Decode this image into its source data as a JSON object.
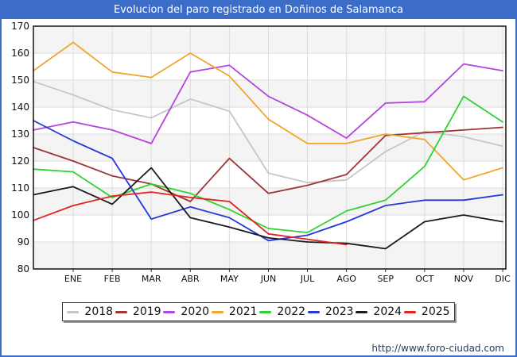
{
  "window": {
    "title": "Evolucion del paro registrado en Doñinos de Salamanca"
  },
  "footer": {
    "url": "http://www.foro-ciudad.com"
  },
  "colors": {
    "frame_blue": "#3a6cc8",
    "plot_border": "#111111",
    "gridline": "#dcdcdc",
    "band_shade": "#f4f4f4",
    "tick_text": "#111111"
  },
  "chart_data": {
    "type": "line",
    "title": "Evolucion del paro registrado en Doñinos de Salamanca",
    "xlabel": "",
    "ylabel": "",
    "categories": [
      "ENE",
      "FEB",
      "MAR",
      "ABR",
      "MAY",
      "JUN",
      "JUL",
      "AGO",
      "SEP",
      "OCT",
      "NOV",
      "DIC"
    ],
    "y_axis": {
      "min": 80,
      "max": 170,
      "step": 10
    },
    "grid": true,
    "legend_position": "bottom",
    "series_note": "start = value where the line meets the left axis edge, before the ENE tick",
    "series": [
      {
        "name": "2018",
        "color": "#c6c6c6",
        "start": 149.5,
        "values": [
          144.5,
          139,
          136,
          143,
          138.5,
          115.5,
          112,
          113,
          123.5,
          131,
          129,
          125.5
        ]
      },
      {
        "name": "2019",
        "color": "#9e3434",
        "start": 125,
        "values": [
          120,
          114.5,
          111.5,
          105,
          121,
          108,
          111,
          115,
          129.5,
          130.5,
          131.5,
          132.5
        ]
      },
      {
        "name": "2020",
        "color": "#b544e0",
        "start": 131.5,
        "values": [
          134.5,
          131.5,
          126.5,
          153,
          155.5,
          144,
          137,
          128.5,
          141.5,
          142,
          156,
          153.5
        ]
      },
      {
        "name": "2021",
        "color": "#f2a52e",
        "start": 153.5,
        "values": [
          164,
          153,
          151,
          160,
          151.5,
          135.5,
          126.5,
          126.5,
          130,
          128,
          113,
          117.5
        ]
      },
      {
        "name": "2022",
        "color": "#2fd32f",
        "start": 117,
        "values": [
          116,
          106.5,
          111.5,
          108,
          102,
          95,
          93.5,
          101.5,
          105.5,
          118,
          144,
          134.5
        ]
      },
      {
        "name": "2023",
        "color": "#2438d8",
        "start": 135,
        "values": [
          127.5,
          121,
          98.5,
          103,
          99,
          90.5,
          92.5,
          97.5,
          103.5,
          105.5,
          105.5,
          107.5
        ]
      },
      {
        "name": "2024",
        "color": "#1a1a1a",
        "start": 107.5,
        "values": [
          110.5,
          104,
          117.5,
          99,
          95.5,
          91.5,
          90,
          89.5,
          87.5,
          97.5,
          100,
          97.5
        ]
      },
      {
        "name": "2025",
        "color": "#e32222",
        "start": 98,
        "values": [
          103.5,
          107,
          108.5,
          106.5,
          105,
          93,
          91,
          89,
          null,
          null,
          null,
          null
        ]
      }
    ]
  }
}
